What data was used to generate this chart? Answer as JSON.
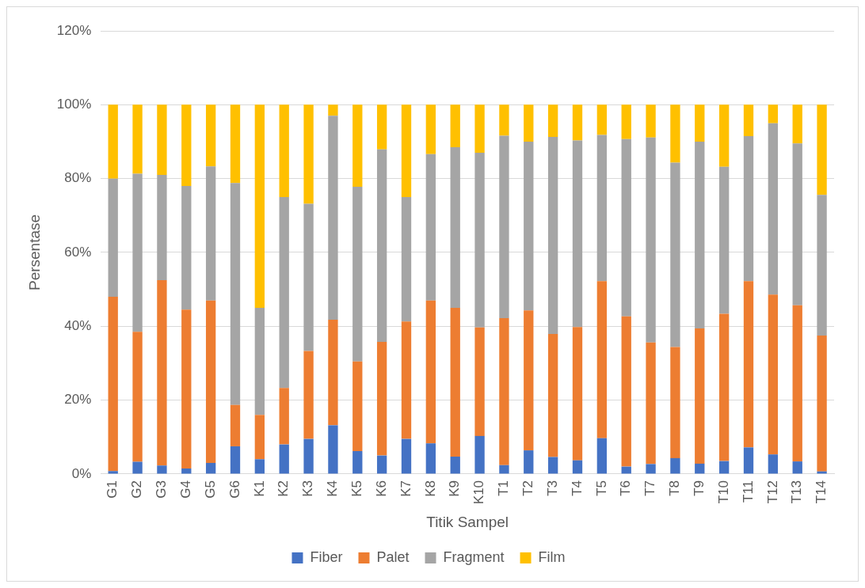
{
  "chart_data": {
    "type": "bar",
    "stacked": true,
    "xlabel": "Titik Sampel",
    "ylabel": "Persentase",
    "categories": [
      "G1",
      "G2",
      "G3",
      "G4",
      "G5",
      "G6",
      "K1",
      "K2",
      "K3",
      "K4",
      "K5",
      "K6",
      "K7",
      "K8",
      "K9",
      "K10",
      "T1",
      "T2",
      "T3",
      "T4",
      "T5",
      "T6",
      "T7",
      "T8",
      "T9",
      "T10",
      "T11",
      "T12",
      "T13",
      "T14"
    ],
    "series": [
      {
        "name": "Fiber",
        "color": "#4472c4",
        "values": [
          0.8,
          3.3,
          2.3,
          1.5,
          3,
          7.5,
          4,
          8,
          9.5,
          13.2,
          6.2,
          5,
          9.5,
          8.3,
          4.7,
          10.3,
          2.4,
          6.4,
          4.6,
          3.7,
          9.7,
          2,
          2.7,
          4.3,
          2.8,
          3.5,
          7.2,
          5.3,
          3.4,
          0.7
        ]
      },
      {
        "name": "Palet",
        "color": "#ed7d31",
        "values": [
          47.2,
          35.2,
          50.2,
          43,
          44,
          11.2,
          12,
          15.3,
          23.8,
          28.6,
          24.3,
          30.8,
          31.8,
          38.7,
          40.3,
          29.4,
          39.8,
          37.9,
          33.3,
          36.1,
          42.5,
          40.7,
          32.9,
          30.1,
          36.6,
          39.9,
          45,
          43.3,
          42.3,
          36.8
        ]
      },
      {
        "name": "Fragment",
        "color": "#a5a5a5",
        "values": [
          32,
          42.8,
          28.5,
          33.5,
          36.3,
          60.1,
          29,
          51.7,
          39.9,
          55.2,
          47.3,
          52.1,
          33.7,
          39.6,
          43.5,
          47.3,
          49.4,
          45.7,
          53.4,
          50.5,
          39.6,
          48,
          55.5,
          49.9,
          50.6,
          39.8,
          39.3,
          46.4,
          43.8,
          38.1
        ]
      },
      {
        "name": "Film",
        "color": "#ffc000",
        "values": [
          20,
          18.7,
          19,
          22,
          16.7,
          21.2,
          55,
          25,
          26.8,
          3,
          22.2,
          12.1,
          25,
          13.4,
          11.5,
          13,
          8.4,
          10,
          8.7,
          9.7,
          8.2,
          9.3,
          8.9,
          15.7,
          10,
          16.8,
          8.5,
          5,
          10.5,
          24.4
        ]
      }
    ],
    "ylim": [
      0,
      120
    ],
    "yticks": [
      {
        "value": 0,
        "label": "0%"
      },
      {
        "value": 20,
        "label": "20%"
      },
      {
        "value": 40,
        "label": "40%"
      },
      {
        "value": 60,
        "label": "60%"
      },
      {
        "value": 80,
        "label": "80%"
      },
      {
        "value": 100,
        "label": "100%"
      },
      {
        "value": 120,
        "label": "120%"
      }
    ],
    "grid": "y",
    "legend": "bottom"
  }
}
